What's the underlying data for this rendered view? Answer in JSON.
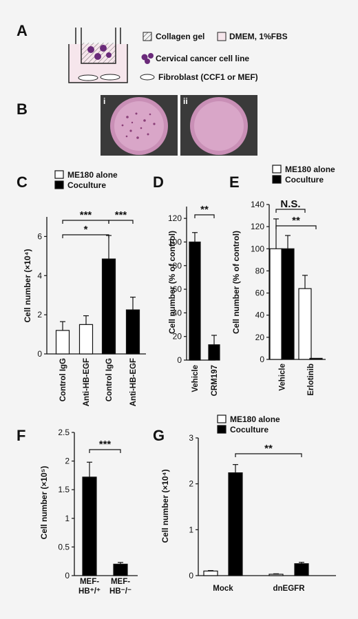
{
  "panels": {
    "A": {
      "label": "A",
      "legend": {
        "gel": "Collagen gel",
        "medium": "DMEM, 1%FBS",
        "cancer": "Cervical cancer cell line",
        "fibro": "Fibroblast (CCF1 or MEF)"
      }
    },
    "B": {
      "label": "B",
      "sub_i": "i",
      "sub_ii": "ii"
    },
    "C": {
      "label": "C"
    },
    "D": {
      "label": "D"
    },
    "E": {
      "label": "E"
    },
    "F": {
      "label": "F"
    },
    "G": {
      "label": "G"
    }
  },
  "colors": {
    "filled": "#000000",
    "open": "#ffffff",
    "dish_pink": "#d9a6c8",
    "colony": "#8a3f78"
  },
  "chart_data": [
    {
      "panel": "C",
      "type": "bar",
      "categories": [
        "Control IgG",
        "Anti-HB-EGF",
        "Control IgG",
        "Anti-HB-EGF"
      ],
      "series": [
        {
          "name": "ME180 alone",
          "values": [
            1.2,
            1.5,
            null,
            null
          ],
          "errors": [
            0.45,
            0.45,
            null,
            null
          ],
          "fill": "#ffffff"
        },
        {
          "name": "Coculture",
          "values": [
            null,
            null,
            4.85,
            2.25
          ],
          "errors": [
            null,
            null,
            1.2,
            0.65
          ],
          "fill": "#000000"
        }
      ],
      "ylabel": "Cell number (×10⁴)",
      "ylim": [
        0,
        7
      ],
      "yticks": [
        "0",
        "2",
        "4",
        "6"
      ],
      "significance": [
        "***",
        "*",
        "***"
      ]
    },
    {
      "panel": "D",
      "type": "bar",
      "categories": [
        "Vehicle",
        "CRM197"
      ],
      "values": [
        100,
        13
      ],
      "errors": [
        8,
        8
      ],
      "ylabel": "Cell number (% of control)",
      "ylim": [
        0,
        130
      ],
      "yticks": [
        "0",
        "20",
        "40",
        "60",
        "80",
        "100",
        "120"
      ],
      "significance": [
        "**"
      ]
    },
    {
      "panel": "E",
      "type": "bar",
      "categories": [
        "Vehicle",
        "Erlotinib"
      ],
      "series": [
        {
          "name": "ME180 alone",
          "values": [
            100,
            64
          ],
          "errors": [
            27,
            12
          ],
          "fill": "#ffffff"
        },
        {
          "name": "Coculture",
          "values": [
            100,
            1
          ],
          "errors": [
            12,
            0
          ],
          "fill": "#000000"
        }
      ],
      "ylabel": "Cell number (% of control)",
      "ylim": [
        0,
        140
      ],
      "yticks": [
        "0",
        "20",
        "40",
        "60",
        "80",
        "100",
        "120",
        "140"
      ],
      "significance": [
        "N.S.",
        "**"
      ]
    },
    {
      "panel": "F",
      "type": "bar",
      "categories": [
        "MEF-HB⁺/⁺",
        "MEF-HB⁻/⁻"
      ],
      "cat_lines": [
        [
          "MEF-",
          "HB⁺/⁺"
        ],
        [
          "MEF-",
          "HB⁻/⁻"
        ]
      ],
      "values": [
        1.72,
        0.2
      ],
      "errors": [
        0.26,
        0.03
      ],
      "ylabel": "Cell number (×10⁵)",
      "ylim": [
        0,
        2.5
      ],
      "yticks": [
        "0",
        "0.5",
        "1",
        "1.5",
        "2",
        "2.5"
      ],
      "significance": [
        "***"
      ]
    },
    {
      "panel": "G",
      "type": "bar",
      "categories": [
        "Mock",
        "dnEGFR"
      ],
      "series": [
        {
          "name": "ME180 alone",
          "values": [
            0.1,
            0.03
          ],
          "errors": [
            0.01,
            0.01
          ],
          "fill": "#ffffff"
        },
        {
          "name": "Coculture",
          "values": [
            2.24,
            0.26
          ],
          "errors": [
            0.18,
            0.03
          ],
          "fill": "#000000"
        }
      ],
      "ylabel": "Cell number (×10⁴)",
      "ylim": [
        0,
        3
      ],
      "yticks": [
        "0",
        "1",
        "2",
        "3"
      ],
      "significance": [
        "**"
      ]
    }
  ]
}
